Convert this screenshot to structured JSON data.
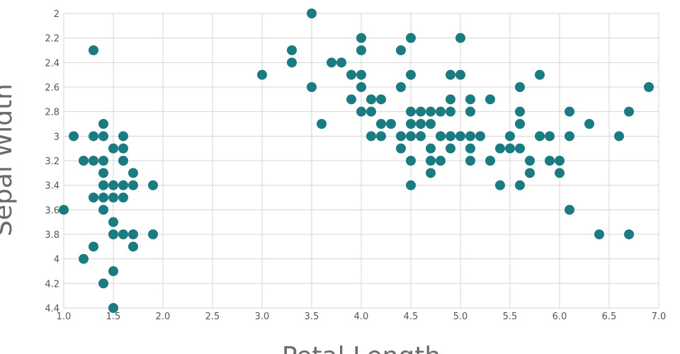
{
  "chart_data": {
    "type": "scatter",
    "xlabel": "Petal Length",
    "ylabel": "Sepal Width",
    "xlim": [
      1.0,
      7.0
    ],
    "ylim": [
      2.0,
      4.4
    ],
    "y_inverted": true,
    "grid": true,
    "x_ticks": [
      "1.0",
      "1.5",
      "2.0",
      "2.5",
      "3.0",
      "3.5",
      "4.0",
      "4.5",
      "5.0",
      "5.5",
      "6.0",
      "6.5",
      "7.0"
    ],
    "y_ticks": [
      "2",
      "2.2",
      "2.4",
      "2.6",
      "2.8",
      "3",
      "3.2",
      "3.4",
      "3.6",
      "3.8",
      "4",
      "4.2",
      "4.4"
    ],
    "marker_color": "#1a7b80",
    "points": [
      [
        1.3,
        2.3
      ],
      [
        1.1,
        3.0
      ],
      [
        1.3,
        3.0
      ],
      [
        1.4,
        3.0
      ],
      [
        1.6,
        3.0
      ],
      [
        1.4,
        2.9
      ],
      [
        1.5,
        3.1
      ],
      [
        1.6,
        3.1
      ],
      [
        1.2,
        3.2
      ],
      [
        1.3,
        3.2
      ],
      [
        1.4,
        3.2
      ],
      [
        1.6,
        3.2
      ],
      [
        1.4,
        3.3
      ],
      [
        1.7,
        3.3
      ],
      [
        1.4,
        3.4
      ],
      [
        1.5,
        3.4
      ],
      [
        1.6,
        3.4
      ],
      [
        1.7,
        3.4
      ],
      [
        1.9,
        3.4
      ],
      [
        1.3,
        3.5
      ],
      [
        1.4,
        3.5
      ],
      [
        1.5,
        3.5
      ],
      [
        1.6,
        3.5
      ],
      [
        1.0,
        3.6
      ],
      [
        1.4,
        3.6
      ],
      [
        1.5,
        3.7
      ],
      [
        1.5,
        3.8
      ],
      [
        1.6,
        3.8
      ],
      [
        1.7,
        3.8
      ],
      [
        1.9,
        3.8
      ],
      [
        1.3,
        3.9
      ],
      [
        1.7,
        3.9
      ],
      [
        1.2,
        4.0
      ],
      [
        1.5,
        4.1
      ],
      [
        1.4,
        4.2
      ],
      [
        1.5,
        4.4
      ],
      [
        3.5,
        2.0
      ],
      [
        4.0,
        2.2
      ],
      [
        4.5,
        2.2
      ],
      [
        5.0,
        2.2
      ],
      [
        3.3,
        2.3
      ],
      [
        4.0,
        2.3
      ],
      [
        4.4,
        2.3
      ],
      [
        3.3,
        2.4
      ],
      [
        3.7,
        2.4
      ],
      [
        3.8,
        2.4
      ],
      [
        3.0,
        2.5
      ],
      [
        3.9,
        2.5
      ],
      [
        4.0,
        2.5
      ],
      [
        4.5,
        2.5
      ],
      [
        4.9,
        2.5
      ],
      [
        5.0,
        2.5
      ],
      [
        5.8,
        2.5
      ],
      [
        3.5,
        2.6
      ],
      [
        4.0,
        2.6
      ],
      [
        4.4,
        2.6
      ],
      [
        5.6,
        2.6
      ],
      [
        6.9,
        2.6
      ],
      [
        3.9,
        2.7
      ],
      [
        4.1,
        2.7
      ],
      [
        4.2,
        2.7
      ],
      [
        4.9,
        2.7
      ],
      [
        5.1,
        2.7
      ],
      [
        5.3,
        2.7
      ],
      [
        4.0,
        2.8
      ],
      [
        4.1,
        2.8
      ],
      [
        4.5,
        2.8
      ],
      [
        4.6,
        2.8
      ],
      [
        4.7,
        2.8
      ],
      [
        4.8,
        2.8
      ],
      [
        4.9,
        2.8
      ],
      [
        5.1,
        2.8
      ],
      [
        5.6,
        2.8
      ],
      [
        6.1,
        2.8
      ],
      [
        6.7,
        2.8
      ],
      [
        3.6,
        2.9
      ],
      [
        4.2,
        2.9
      ],
      [
        4.3,
        2.9
      ],
      [
        4.5,
        2.9
      ],
      [
        4.6,
        2.9
      ],
      [
        4.7,
        2.9
      ],
      [
        5.6,
        2.9
      ],
      [
        6.3,
        2.9
      ],
      [
        4.1,
        3.0
      ],
      [
        4.2,
        3.0
      ],
      [
        4.4,
        3.0
      ],
      [
        4.5,
        3.0
      ],
      [
        4.6,
        3.0
      ],
      [
        4.8,
        3.0
      ],
      [
        4.9,
        3.0
      ],
      [
        5.0,
        3.0
      ],
      [
        5.1,
        3.0
      ],
      [
        5.2,
        3.0
      ],
      [
        5.5,
        3.0
      ],
      [
        5.8,
        3.0
      ],
      [
        5.9,
        3.0
      ],
      [
        6.1,
        3.0
      ],
      [
        6.6,
        3.0
      ],
      [
        4.4,
        3.1
      ],
      [
        4.7,
        3.1
      ],
      [
        4.9,
        3.1
      ],
      [
        5.1,
        3.1
      ],
      [
        5.4,
        3.1
      ],
      [
        5.5,
        3.1
      ],
      [
        5.6,
        3.1
      ],
      [
        4.5,
        3.2
      ],
      [
        4.7,
        3.2
      ],
      [
        4.8,
        3.2
      ],
      [
        5.1,
        3.2
      ],
      [
        5.3,
        3.2
      ],
      [
        5.7,
        3.2
      ],
      [
        5.9,
        3.2
      ],
      [
        6.0,
        3.2
      ],
      [
        4.7,
        3.3
      ],
      [
        5.7,
        3.3
      ],
      [
        6.0,
        3.3
      ],
      [
        4.5,
        3.4
      ],
      [
        5.4,
        3.4
      ],
      [
        5.6,
        3.4
      ],
      [
        6.1,
        3.6
      ],
      [
        6.4,
        3.8
      ],
      [
        6.7,
        3.8
      ]
    ]
  }
}
